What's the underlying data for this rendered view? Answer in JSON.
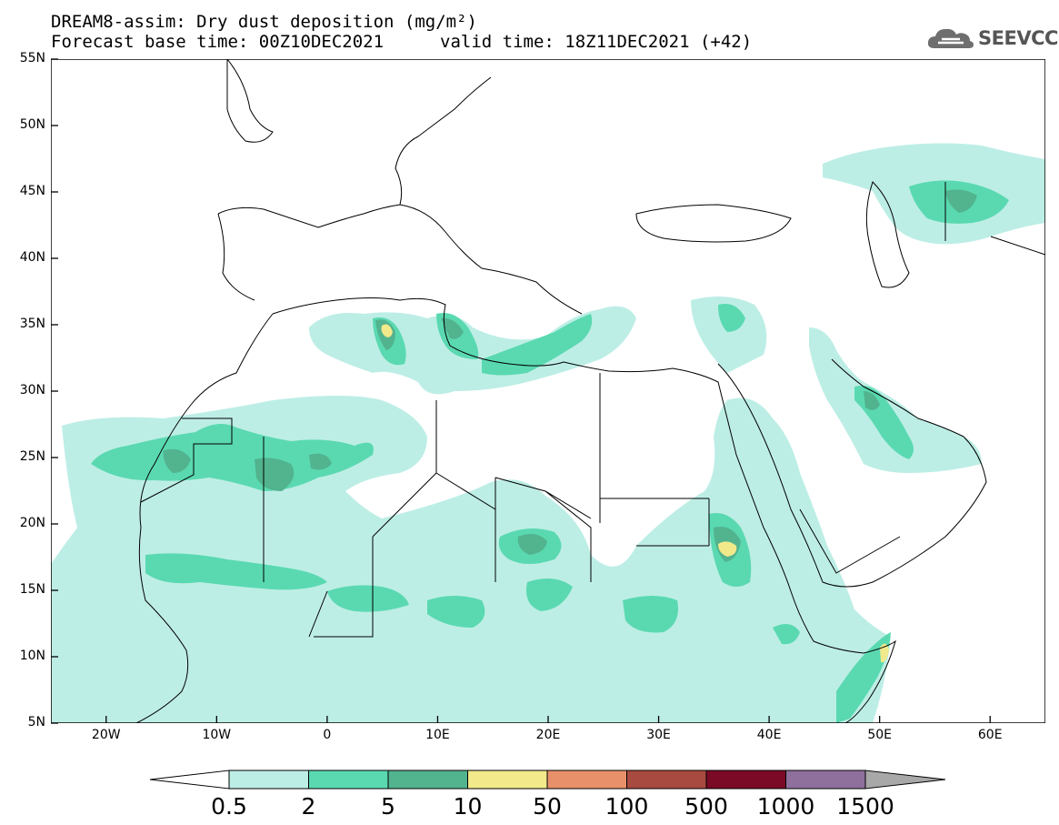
{
  "title_line1": "DREAM8-assim: Dry dust deposition (mg/m²)",
  "title_line2_left": "Forecast base time: 00Z10DEC2021",
  "title_line2_right": "valid time: 18Z11DEC2021 (+42)",
  "logo": {
    "text": "SEEVCCC",
    "icon": "cloud-icon",
    "color": "#555555"
  },
  "map": {
    "lon_range": [
      -25,
      65
    ],
    "lat_range": [
      5,
      55
    ],
    "lat_ticks": [
      {
        "value": 55,
        "label": "55N"
      },
      {
        "value": 50,
        "label": "50N"
      },
      {
        "value": 45,
        "label": "45N"
      },
      {
        "value": 40,
        "label": "40N"
      },
      {
        "value": 35,
        "label": "35N"
      },
      {
        "value": 30,
        "label": "30N"
      },
      {
        "value": 25,
        "label": "25N"
      },
      {
        "value": 20,
        "label": "20N"
      },
      {
        "value": 15,
        "label": "15N"
      },
      {
        "value": 10,
        "label": "10N"
      },
      {
        "value": 5,
        "label": "5N"
      }
    ],
    "lon_ticks": [
      {
        "value": -20,
        "label": "20W"
      },
      {
        "value": -10,
        "label": "10W"
      },
      {
        "value": 0,
        "label": "0"
      },
      {
        "value": 10,
        "label": "10E"
      },
      {
        "value": 20,
        "label": "20E"
      },
      {
        "value": 30,
        "label": "30E"
      },
      {
        "value": 40,
        "label": "40E"
      },
      {
        "value": 50,
        "label": "50E"
      },
      {
        "value": 60,
        "label": "60E"
      }
    ]
  },
  "colorbar": {
    "labels": [
      "0.5",
      "2",
      "5",
      "10",
      "50",
      "100",
      "500",
      "1000",
      "1500"
    ],
    "colors": [
      "#bdeee6",
      "#5ad9b0",
      "#52b38f",
      "#f1e98a",
      "#e8906a",
      "#a84a40",
      "#7a0a26",
      "#8f6f9c"
    ],
    "over_color": "#a8a8a8",
    "under_color": "#ffffff"
  },
  "dust_levels": [
    "#bdeee6",
    "#5ad9b0",
    "#52b38f",
    "#f1e98a"
  ]
}
